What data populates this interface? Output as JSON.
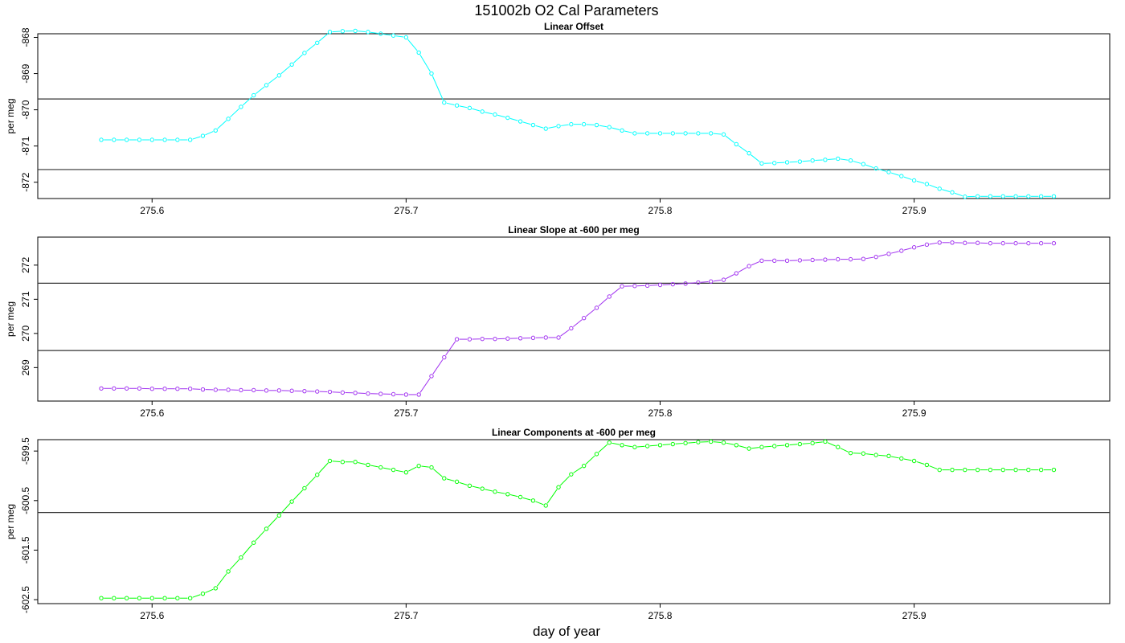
{
  "title": "151002b   O2 Cal Parameters",
  "xlabel": "day of year",
  "chart_data": [
    {
      "type": "line",
      "title": "Linear Offset",
      "ylabel": "per meg",
      "color": "#00ffff",
      "xlim": [
        275.555,
        275.977
      ],
      "ylim": [
        -872.45,
        -867.9
      ],
      "xticks": [
        "275.6",
        "275.7",
        "275.8",
        "275.9"
      ],
      "yticks": [
        "-868",
        "-869",
        "-870",
        "-871",
        "-872"
      ],
      "hlines": [
        -869.7,
        -871.65
      ],
      "x": [
        275.58,
        275.585,
        275.59,
        275.595,
        275.6,
        275.605,
        275.61,
        275.615,
        275.62,
        275.625,
        275.63,
        275.635,
        275.64,
        275.645,
        275.65,
        275.655,
        275.66,
        275.665,
        275.67,
        275.675,
        275.68,
        275.685,
        275.69,
        275.695,
        275.7,
        275.705,
        275.71,
        275.715,
        275.72,
        275.725,
        275.73,
        275.735,
        275.74,
        275.745,
        275.75,
        275.755,
        275.76,
        275.765,
        275.77,
        275.775,
        275.78,
        275.785,
        275.79,
        275.795,
        275.8,
        275.805,
        275.81,
        275.815,
        275.82,
        275.825,
        275.83,
        275.835,
        275.84,
        275.845,
        275.85,
        275.855,
        275.86,
        275.865,
        275.87,
        275.875,
        275.88,
        275.885,
        275.89,
        275.895,
        275.9,
        275.905,
        275.91,
        275.915,
        275.92,
        275.925,
        275.93,
        275.935,
        275.94,
        275.945,
        275.95,
        275.955
      ],
      "y": [
        -870.83,
        -870.83,
        -870.83,
        -870.83,
        -870.83,
        -870.83,
        -870.83,
        -870.83,
        -870.72,
        -870.57,
        -870.25,
        -869.92,
        -869.6,
        -869.32,
        -869.05,
        -868.75,
        -868.43,
        -868.15,
        -867.85,
        -867.83,
        -867.82,
        -867.85,
        -867.9,
        -867.95,
        -868.0,
        -868.42,
        -869.0,
        -869.8,
        -869.88,
        -869.95,
        -870.05,
        -870.13,
        -870.22,
        -870.32,
        -870.42,
        -870.52,
        -870.45,
        -870.4,
        -870.4,
        -870.42,
        -870.48,
        -870.57,
        -870.65,
        -870.65,
        -870.65,
        -870.65,
        -870.65,
        -870.65,
        -870.65,
        -870.68,
        -870.95,
        -871.2,
        -871.48,
        -871.47,
        -871.45,
        -871.43,
        -871.4,
        -871.38,
        -871.35,
        -871.4,
        -871.5,
        -871.62,
        -871.72,
        -871.83,
        -871.95,
        -872.05,
        -872.18,
        -872.28,
        -872.4,
        -872.39,
        -872.39,
        -872.39,
        -872.39,
        -872.39,
        -872.39,
        -872.39
      ]
    },
    {
      "type": "line",
      "title": "Linear Slope at -600 per meg",
      "ylabel": "per meg",
      "color": "#a030f0",
      "xlim": [
        275.555,
        275.977
      ],
      "ylim": [
        268.02,
        272.82
      ],
      "xticks": [
        "275.6",
        "275.7",
        "275.8",
        "275.9"
      ],
      "yticks": [
        "269",
        "270",
        "271",
        "272"
      ],
      "hlines": [
        271.47,
        269.5
      ],
      "x": [
        275.58,
        275.585,
        275.59,
        275.595,
        275.6,
        275.605,
        275.61,
        275.615,
        275.62,
        275.625,
        275.63,
        275.635,
        275.64,
        275.645,
        275.65,
        275.655,
        275.66,
        275.665,
        275.67,
        275.675,
        275.68,
        275.685,
        275.69,
        275.695,
        275.7,
        275.705,
        275.71,
        275.715,
        275.72,
        275.725,
        275.73,
        275.735,
        275.74,
        275.745,
        275.75,
        275.755,
        275.76,
        275.765,
        275.77,
        275.775,
        275.78,
        275.785,
        275.79,
        275.795,
        275.8,
        275.805,
        275.81,
        275.815,
        275.82,
        275.825,
        275.83,
        275.835,
        275.84,
        275.845,
        275.85,
        275.855,
        275.86,
        275.865,
        275.87,
        275.875,
        275.88,
        275.885,
        275.89,
        275.895,
        275.9,
        275.905,
        275.91,
        275.915,
        275.92,
        275.925,
        275.93,
        275.935,
        275.94,
        275.945,
        275.95,
        275.955
      ],
      "y": [
        268.39,
        268.39,
        268.39,
        268.39,
        268.38,
        268.38,
        268.38,
        268.38,
        268.36,
        268.35,
        268.35,
        268.34,
        268.34,
        268.33,
        268.33,
        268.32,
        268.31,
        268.3,
        268.29,
        268.27,
        268.26,
        268.24,
        268.23,
        268.22,
        268.21,
        268.21,
        268.75,
        269.3,
        269.83,
        269.83,
        269.84,
        269.84,
        269.85,
        269.86,
        269.87,
        269.88,
        269.88,
        270.15,
        270.45,
        270.75,
        271.08,
        271.38,
        271.39,
        271.4,
        271.42,
        271.44,
        271.46,
        271.49,
        271.52,
        271.57,
        271.76,
        271.97,
        272.13,
        272.13,
        272.13,
        272.14,
        272.15,
        272.16,
        272.17,
        272.17,
        272.18,
        272.24,
        272.33,
        272.42,
        272.52,
        272.6,
        272.66,
        272.66,
        272.65,
        272.65,
        272.64,
        272.64,
        272.64,
        272.64,
        272.64,
        272.64
      ]
    },
    {
      "type": "line",
      "title": "Linear Components at -600 per meg",
      "ylabel": "per meg",
      "color": "#00ff00",
      "xlim": [
        275.555,
        275.977
      ],
      "ylim": [
        -602.58,
        -599.27
      ],
      "xticks": [
        "275.6",
        "275.7",
        "275.8",
        "275.9"
      ],
      "yticks": [
        "-599.5",
        "-600.5",
        "-601.5",
        "-602.5"
      ],
      "hlines": [
        -600.74
      ],
      "x": [
        275.58,
        275.585,
        275.59,
        275.595,
        275.6,
        275.605,
        275.61,
        275.615,
        275.62,
        275.625,
        275.63,
        275.635,
        275.64,
        275.645,
        275.65,
        275.655,
        275.66,
        275.665,
        275.67,
        275.675,
        275.68,
        275.685,
        275.69,
        275.695,
        275.7,
        275.705,
        275.71,
        275.715,
        275.72,
        275.725,
        275.73,
        275.735,
        275.74,
        275.745,
        275.75,
        275.755,
        275.76,
        275.765,
        275.77,
        275.775,
        275.78,
        275.785,
        275.79,
        275.795,
        275.8,
        275.805,
        275.81,
        275.815,
        275.82,
        275.825,
        275.83,
        275.835,
        275.84,
        275.845,
        275.85,
        275.855,
        275.86,
        275.865,
        275.87,
        275.875,
        275.88,
        275.885,
        275.89,
        275.895,
        275.9,
        275.905,
        275.91,
        275.915,
        275.92,
        275.925,
        275.93,
        275.935,
        275.94,
        275.945,
        275.95,
        275.955
      ],
      "y": [
        -602.47,
        -602.47,
        -602.47,
        -602.47,
        -602.47,
        -602.47,
        -602.47,
        -602.47,
        -602.38,
        -602.27,
        -601.93,
        -601.65,
        -601.35,
        -601.07,
        -600.8,
        -600.52,
        -600.25,
        -599.98,
        -599.7,
        -599.72,
        -599.72,
        -599.78,
        -599.83,
        -599.88,
        -599.93,
        -599.8,
        -599.83,
        -600.05,
        -600.12,
        -600.2,
        -600.26,
        -600.32,
        -600.37,
        -600.43,
        -600.5,
        -600.6,
        -600.23,
        -599.97,
        -599.8,
        -599.56,
        -599.33,
        -599.38,
        -599.42,
        -599.4,
        -599.38,
        -599.36,
        -599.34,
        -599.32,
        -599.31,
        -599.33,
        -599.38,
        -599.45,
        -599.42,
        -599.4,
        -599.38,
        -599.36,
        -599.34,
        -599.31,
        -599.42,
        -599.54,
        -599.55,
        -599.58,
        -599.6,
        -599.65,
        -599.7,
        -599.78,
        -599.88,
        -599.88,
        -599.88,
        -599.88,
        -599.88,
        -599.88,
        -599.88,
        -599.88,
        -599.88,
        -599.88
      ]
    }
  ]
}
